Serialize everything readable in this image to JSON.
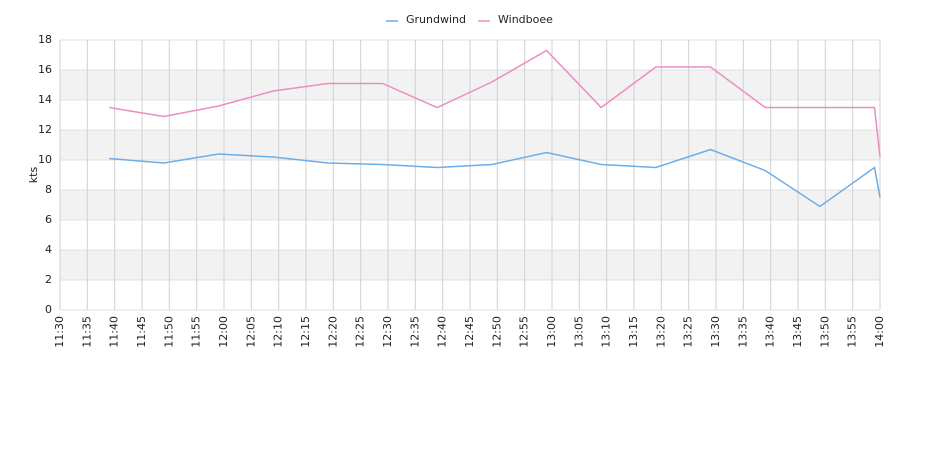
{
  "chart_data": {
    "type": "line",
    "ylabel": "kts",
    "x": [
      "11:39",
      "11:49",
      "11:59",
      "12:09",
      "12:19",
      "12:29",
      "12:39",
      "12:49",
      "12:59",
      "13:09",
      "13:19",
      "13:29",
      "13:39",
      "13:49",
      "13:59",
      "14:00"
    ],
    "series": [
      {
        "name": "Grundwind",
        "color": "#6aaeea",
        "values": [
          10.1,
          9.8,
          10.4,
          10.2,
          9.8,
          9.7,
          9.5,
          9.7,
          10.5,
          9.7,
          9.5,
          10.7,
          9.3,
          6.9,
          9.5,
          7.5
        ]
      },
      {
        "name": "Windboee",
        "color": "#ee8cc2",
        "values": [
          13.5,
          12.9,
          13.6,
          14.6,
          15.1,
          15.1,
          13.5,
          15.2,
          17.3,
          13.5,
          16.2,
          16.2,
          13.5,
          13.5,
          13.5,
          10.2
        ]
      }
    ],
    "xlim": [
      "11:30",
      "14:00"
    ],
    "xticks": [
      "11:30",
      "11:35",
      "11:40",
      "11:45",
      "11:50",
      "11:55",
      "12:00",
      "12:05",
      "12:10",
      "12:15",
      "12:20",
      "12:25",
      "12:30",
      "12:35",
      "12:40",
      "12:45",
      "12:50",
      "12:55",
      "13:00",
      "13:05",
      "13:10",
      "13:15",
      "13:20",
      "13:25",
      "13:30",
      "13:35",
      "13:40",
      "13:45",
      "13:50",
      "13:55",
      "14:00"
    ],
    "ylim": [
      0,
      18
    ],
    "yticks": [
      0,
      2,
      4,
      6,
      8,
      10,
      12,
      14,
      16,
      18
    ],
    "grid": true,
    "alternate_bands": true,
    "legend": "top"
  }
}
